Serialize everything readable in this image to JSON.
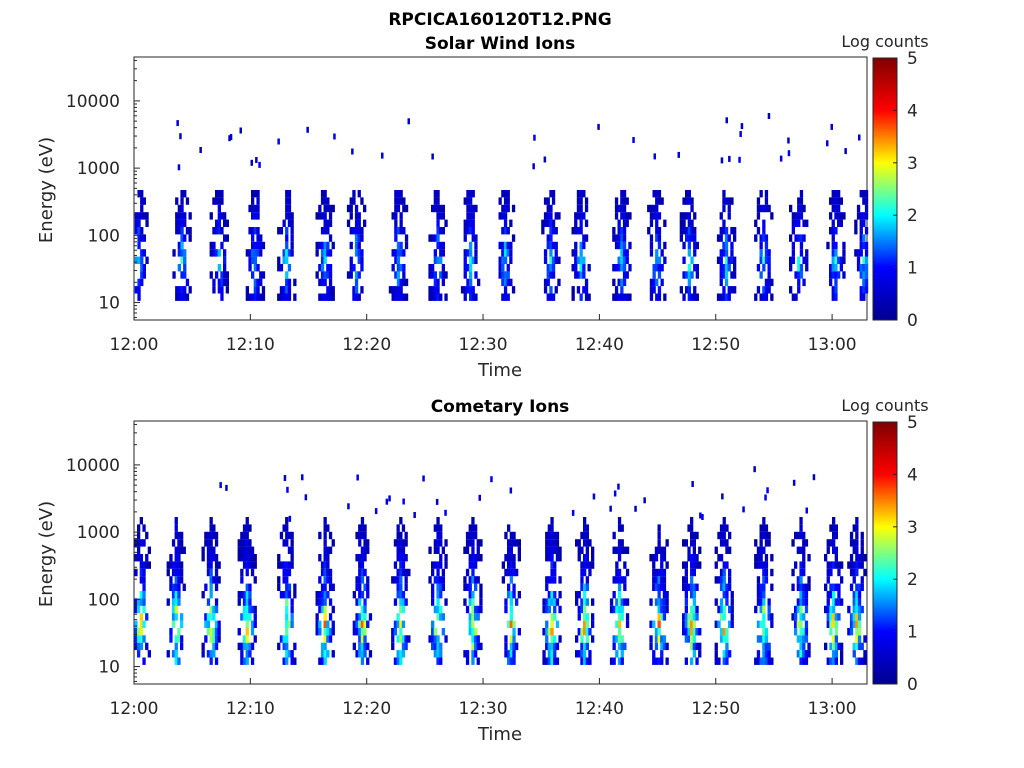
{
  "figure_title": "RPCICA160120T12.PNG",
  "colormap": {
    "stops": [
      "#00008f",
      "#0000ff",
      "#00ffff",
      "#ffff00",
      "#ff0000",
      "#800000"
    ]
  },
  "chart_data": [
    {
      "type": "heatmap",
      "title": "Solar Wind Ions",
      "xlabel": "Time",
      "ylabel": "Energy (eV)",
      "colorbar_label": "Log counts",
      "colorbar_range": [
        0,
        5
      ],
      "colorbar_ticks": [
        "0",
        "1",
        "2",
        "3",
        "4",
        "5"
      ],
      "ylog": true,
      "ylim": [
        5.5,
        45000
      ],
      "y_ticks": [
        "10",
        "100",
        "1000",
        "10000"
      ],
      "x_range_min": [
        0,
        63
      ],
      "x_ticks": [
        "12:00",
        "12:10",
        "12:20",
        "12:30",
        "12:40",
        "12:50",
        "13:00"
      ],
      "bursts_min": [
        0.3,
        4.0,
        7.2,
        10.3,
        13.0,
        16.3,
        19.0,
        22.6,
        26.0,
        28.8,
        31.8,
        35.7,
        38.3,
        41.8,
        44.8,
        47.6,
        50.8,
        54.0,
        57.0,
        60.2,
        62.6
      ],
      "energy_peak_eV": 40,
      "max_energy_eV": 500,
      "peak_log_counts": 2.2,
      "sparse_high_energy_eV": [
        1000,
        6000
      ]
    },
    {
      "type": "heatmap",
      "title": "Cometary Ions",
      "xlabel": "Time",
      "ylabel": "Energy (eV)",
      "colorbar_label": "Log counts",
      "colorbar_range": [
        0,
        5
      ],
      "colorbar_ticks": [
        "0",
        "1",
        "2",
        "3",
        "4",
        "5"
      ],
      "ylog": true,
      "ylim": [
        5.5,
        45000
      ],
      "y_ticks": [
        "10",
        "100",
        "1000",
        "10000"
      ],
      "x_range_min": [
        0,
        63
      ],
      "x_ticks": [
        "12:00",
        "12:10",
        "12:20",
        "12:30",
        "12:40",
        "12:50",
        "13:00"
      ],
      "bursts_min": [
        0.5,
        3.5,
        6.5,
        9.6,
        13.0,
        16.3,
        19.5,
        22.8,
        26.0,
        29.0,
        32.3,
        35.8,
        38.6,
        41.6,
        45.0,
        47.8,
        50.6,
        54.0,
        57.2,
        60.0,
        62.0
      ],
      "energy_peak_eV": 40,
      "max_energy_eV": 1500,
      "peak_log_counts": 3.6,
      "sparse_high_energy_eV": [
        1500,
        9000
      ]
    }
  ]
}
